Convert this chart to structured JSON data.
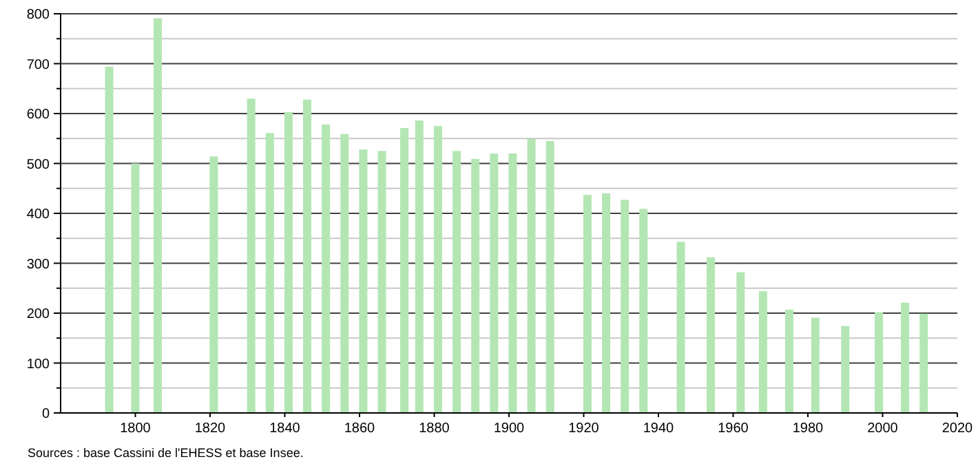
{
  "chart_data": {
    "type": "bar",
    "x": [
      1793,
      1800,
      1806,
      1821,
      1831,
      1836,
      1841,
      1846,
      1851,
      1856,
      1861,
      1866,
      1872,
      1876,
      1881,
      1886,
      1891,
      1896,
      1901,
      1906,
      1911,
      1921,
      1926,
      1931,
      1936,
      1946,
      1954,
      1962,
      1968,
      1975,
      1982,
      1990,
      1999,
      2006,
      2011
    ],
    "values": [
      694,
      500,
      791,
      514,
      630,
      561,
      603,
      628,
      578,
      559,
      528,
      525,
      571,
      586,
      575,
      525,
      509,
      520,
      520,
      549,
      545,
      437,
      440,
      427,
      409,
      343,
      312,
      282,
      244,
      207,
      191,
      174,
      202,
      221,
      199
    ],
    "color": "#b3e6b3",
    "xlim": [
      1780,
      2020
    ],
    "xticks": [
      1800,
      1820,
      1840,
      1860,
      1880,
      1900,
      1920,
      1940,
      1960,
      1980,
      2000,
      2020
    ],
    "ylim": [
      0,
      800
    ],
    "yticks": [
      0,
      {
        "value": 50,
        "label": null
      },
      100,
      {
        "value": 150,
        "label": null
      },
      200,
      {
        "value": 250,
        "label": null
      },
      300,
      {
        "value": 350,
        "label": null
      },
      400,
      {
        "value": 450,
        "label": null
      },
      500,
      {
        "value": 550,
        "label": null
      },
      600,
      {
        "value": 650,
        "label": null
      },
      700,
      {
        "value": 750,
        "label": null
      },
      800
    ],
    "grid": "y",
    "annotations": [
      "Sources : base Cassini de l'EHESS et base Insee."
    ]
  }
}
